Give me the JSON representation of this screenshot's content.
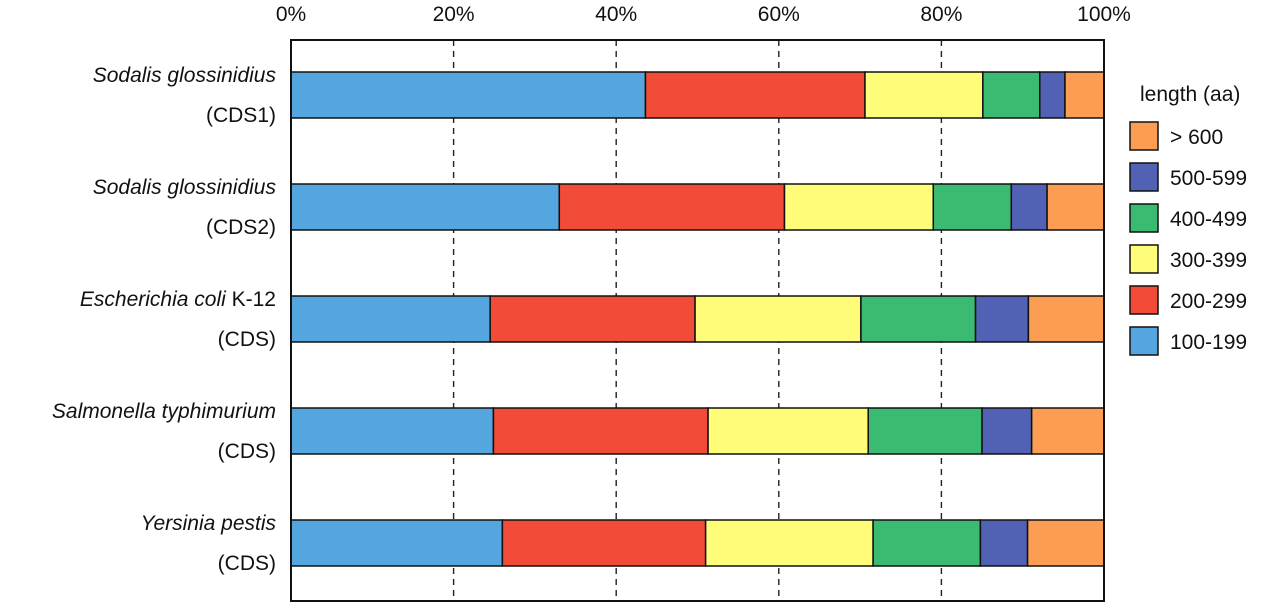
{
  "chart_data": {
    "type": "bar",
    "orientation": "horizontal",
    "stacked": true,
    "normalized": true,
    "x_ticks": [
      "0%",
      "20%",
      "40%",
      "60%",
      "80%",
      "100%"
    ],
    "x_tick_values": [
      0,
      20,
      40,
      60,
      80,
      100
    ],
    "xlim": [
      0,
      100
    ],
    "x_axis_position": "top",
    "grid": "vertical dashed",
    "categories": [
      {
        "italic": "Sodalis glossinidius",
        "suffix": "",
        "sub": "(CDS1)"
      },
      {
        "italic": "Sodalis glossinidius",
        "suffix": "",
        "sub": "(CDS2)"
      },
      {
        "italic": "Escherichia coli",
        "suffix": " K-12",
        "sub": "(CDS)"
      },
      {
        "italic": "Salmonella typhimurium",
        "suffix": "",
        "sub": "(CDS)"
      },
      {
        "italic": "Yersinia pestis",
        "suffix": "",
        "sub": "(CDS)"
      }
    ],
    "series": [
      {
        "name": "100-199",
        "color": "#55a5de",
        "values": [
          43.6,
          33.0,
          24.5,
          24.9,
          26.0
        ]
      },
      {
        "name": "200-299",
        "color": "#f24b38",
        "values": [
          27.0,
          27.7,
          25.2,
          26.4,
          25.0
        ]
      },
      {
        "name": "300-399",
        "color": "#fefc78",
        "values": [
          14.5,
          18.3,
          20.4,
          19.7,
          20.6
        ]
      },
      {
        "name": "400-499",
        "color": "#3bba72",
        "values": [
          7.0,
          9.6,
          14.1,
          14.0,
          13.2
        ]
      },
      {
        "name": "500-599",
        "color": "#5162b5",
        "values": [
          3.1,
          4.4,
          6.5,
          6.1,
          5.8
        ]
      },
      {
        "name": "> 600",
        "color": "#fb9d52",
        "values": [
          4.8,
          7.0,
          9.3,
          8.9,
          9.4
        ]
      }
    ],
    "legend": {
      "title": "length (aa)",
      "placement": "right",
      "order": [
        "> 600",
        "500-599",
        "400-499",
        "300-399",
        "200-299",
        "100-199"
      ]
    }
  }
}
